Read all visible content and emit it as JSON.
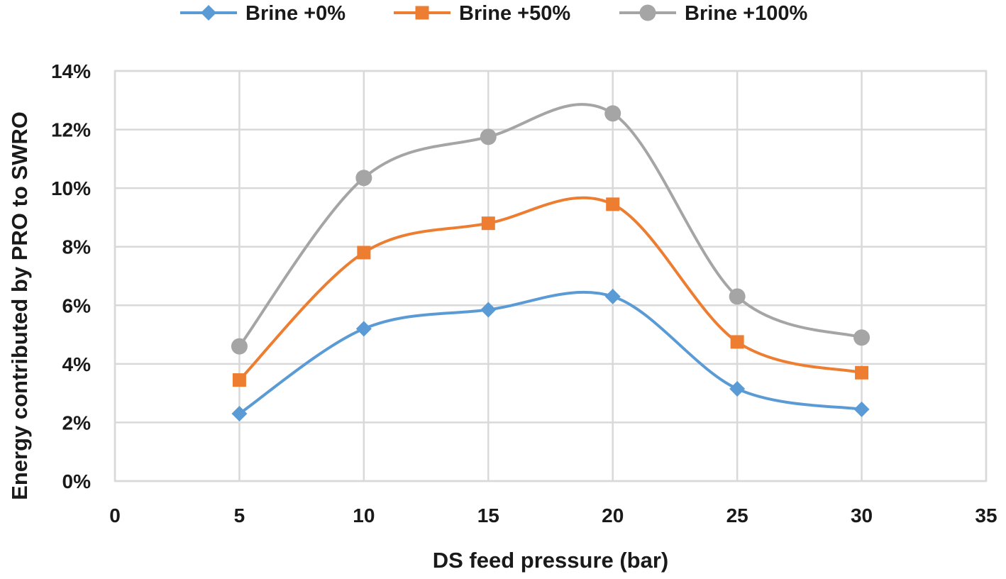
{
  "chart_data": {
    "type": "line",
    "title": "",
    "xlabel": "DS feed pressure  (bar)",
    "ylabel": "Energy contributed by PRO to SWRO",
    "xlim": [
      0,
      35
    ],
    "ylim": [
      0,
      14
    ],
    "x_ticks": [
      0,
      5,
      10,
      15,
      20,
      25,
      30,
      35
    ],
    "y_ticks": [
      0,
      2,
      4,
      6,
      8,
      10,
      12,
      14
    ],
    "x_tick_labels": [
      "0",
      "5",
      "10",
      "15",
      "20",
      "25",
      "30",
      "35"
    ],
    "y_tick_labels": [
      "0%",
      "2%",
      "4%",
      "6%",
      "8%",
      "10%",
      "12%",
      "14%"
    ],
    "grid": true,
    "smooth": true,
    "legend_position": "top",
    "series": [
      {
        "name": "Brine +0%",
        "marker": "diamond",
        "color": "#5b9bd5",
        "x": [
          5,
          10,
          15,
          20,
          25,
          30
        ],
        "values": [
          2.3,
          5.2,
          5.85,
          6.3,
          3.15,
          2.45
        ]
      },
      {
        "name": "Brine +50%",
        "marker": "square",
        "color": "#ed7d31",
        "x": [
          5,
          10,
          15,
          20,
          25,
          30
        ],
        "values": [
          3.45,
          7.8,
          8.8,
          9.45,
          4.75,
          3.7
        ]
      },
      {
        "name": "Brine +100%",
        "marker": "circle",
        "color": "#a5a5a5",
        "x": [
          5,
          10,
          15,
          20,
          25,
          30
        ],
        "values": [
          4.6,
          10.35,
          11.75,
          12.55,
          6.3,
          4.9
        ]
      }
    ]
  }
}
